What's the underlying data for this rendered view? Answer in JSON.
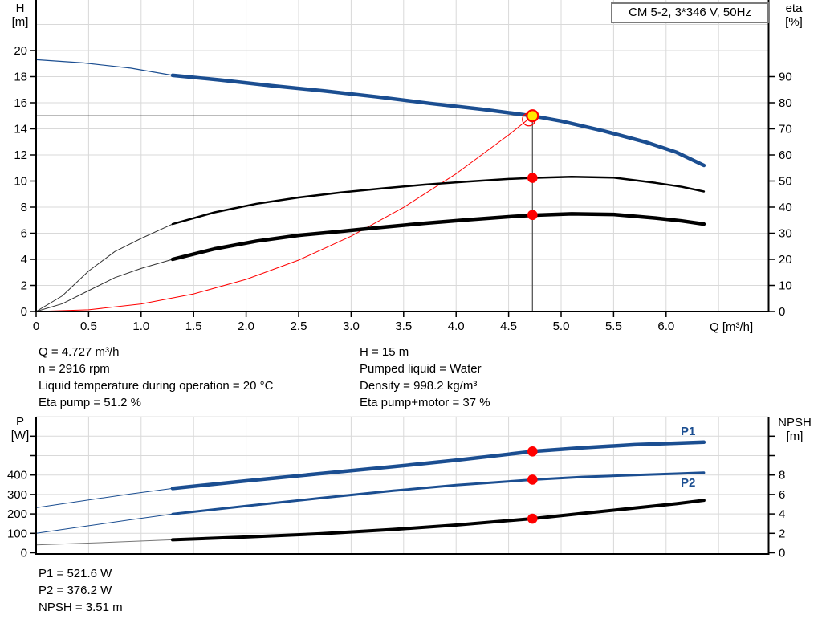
{
  "title_box": {
    "text": "CM 5-2, 3*346 V, 50Hz"
  },
  "colors": {
    "curve_blue": "#1b4e91",
    "system_red": "#ff0000",
    "marker_red": "#ff0000",
    "duty_yellow": "#ffe600",
    "grid": "#d9d9d9",
    "axis": "#000000",
    "duty_line": "#4a4a4a"
  },
  "info_panel": {
    "left": [
      "Q = 4.727 m³/h",
      "n = 2916 rpm",
      "Liquid temperature during operation = 20 °C",
      "Eta pump = 51.2 %"
    ],
    "right": [
      "H = 15 m",
      "Pumped liquid = Water",
      "Density = 998.2 kg/m³",
      "Eta pump+motor = 37 %"
    ]
  },
  "results_panel": [
    "P1 = 521.6 W",
    "P2 = 376.2 W",
    "NPSH = 3.51 m"
  ],
  "chart_data": [
    {
      "type": "line",
      "name": "qh-eta-chart",
      "title": "CM 5-2, 3*346 V, 50Hz",
      "x_axis": {
        "label": "Q [m³/h]",
        "min": 0,
        "max": 6.98,
        "ticks": [
          "0",
          "0.5",
          "1.0",
          "1.5",
          "2.0",
          "2.5",
          "3.0",
          "3.5",
          "4.0",
          "4.5",
          "5.0",
          "5.5",
          "6.0"
        ]
      },
      "y_axis_left": {
        "label": [
          "H",
          "[m]"
        ],
        "min": 0,
        "max": 23.9,
        "ticks": [
          0,
          2,
          4,
          6,
          8,
          10,
          12,
          14,
          16,
          18,
          20
        ]
      },
      "y_axis_right": {
        "label": [
          "eta",
          "[%]"
        ],
        "min": 0,
        "max": 119,
        "ticks": [
          0,
          10,
          20,
          30,
          40,
          50,
          60,
          70,
          80,
          90
        ]
      },
      "duty_point": {
        "q": 4.727,
        "h": 15
      },
      "markers": [
        {
          "q": 4.727,
          "value": 15,
          "axis": "left",
          "style": "duty"
        },
        {
          "q": 4.727,
          "value": 51.2,
          "axis": "right",
          "style": "dot"
        },
        {
          "q": 4.727,
          "value": 37,
          "axis": "right",
          "style": "dot"
        }
      ],
      "series": [
        {
          "id": "pump-curve-extension",
          "axis": "left",
          "color": "#1b4e91",
          "width": 1.2,
          "points": [
            [
              0,
              19.3
            ],
            [
              0.45,
              19.05
            ],
            [
              0.9,
              18.65
            ],
            [
              1.3,
              18.1
            ]
          ]
        },
        {
          "id": "pump-curve",
          "axis": "left",
          "color": "#1b4e91",
          "width": 4.5,
          "points": [
            [
              1.3,
              18.1
            ],
            [
              1.75,
              17.75
            ],
            [
              2.25,
              17.3
            ],
            [
              2.75,
              16.9
            ],
            [
              3.25,
              16.45
            ],
            [
              3.75,
              15.95
            ],
            [
              4.25,
              15.5
            ],
            [
              4.727,
              15
            ],
            [
              5.0,
              14.6
            ],
            [
              5.4,
              13.85
            ],
            [
              5.8,
              13.0
            ],
            [
              6.1,
              12.2
            ],
            [
              6.36,
              11.2
            ]
          ]
        },
        {
          "id": "system-curve",
          "axis": "left",
          "color": "#ff0000",
          "width": 1,
          "points": [
            [
              0,
              0
            ],
            [
              0.5,
              0.13
            ],
            [
              1,
              0.58
            ],
            [
              1.5,
              1.35
            ],
            [
              2,
              2.46
            ],
            [
              2.5,
              3.94
            ],
            [
              3,
              5.77
            ],
            [
              3.5,
              7.98
            ],
            [
              4,
              10.56
            ],
            [
              4.5,
              13.53
            ],
            [
              4.727,
              15
            ]
          ]
        },
        {
          "id": "eta-pump-extension",
          "axis": "right",
          "color": "#333333",
          "width": 1,
          "points": [
            [
              0,
              0
            ],
            [
              0.25,
              6
            ],
            [
              0.5,
              15.5
            ],
            [
              0.75,
              23
            ],
            [
              1,
              28
            ],
            [
              1.3,
              33.5
            ]
          ]
        },
        {
          "id": "eta-pump-curve",
          "axis": "right",
          "color": "#000000",
          "width": 2.5,
          "points": [
            [
              1.3,
              33.5
            ],
            [
              1.7,
              38
            ],
            [
              2.1,
              41.3
            ],
            [
              2.5,
              43.7
            ],
            [
              2.9,
              45.6
            ],
            [
              3.3,
              47.2
            ],
            [
              3.7,
              48.6
            ],
            [
              4.1,
              49.8
            ],
            [
              4.5,
              50.8
            ],
            [
              4.727,
              51.2
            ],
            [
              5.1,
              51.6
            ],
            [
              5.5,
              51.3
            ],
            [
              5.9,
              49.3
            ],
            [
              6.15,
              47.8
            ],
            [
              6.36,
              46
            ]
          ]
        },
        {
          "id": "eta-pump-motor-extension",
          "axis": "right",
          "color": "#333333",
          "width": 1,
          "points": [
            [
              0,
              0
            ],
            [
              0.25,
              3
            ],
            [
              0.5,
              8
            ],
            [
              0.75,
              13
            ],
            [
              1,
              16.5
            ],
            [
              1.3,
              20
            ]
          ]
        },
        {
          "id": "eta-pump-motor-curve",
          "axis": "right",
          "color": "#000000",
          "width": 4.5,
          "points": [
            [
              1.3,
              20
            ],
            [
              1.7,
              24
            ],
            [
              2.1,
              27
            ],
            [
              2.5,
              29.2
            ],
            [
              2.9,
              30.7
            ],
            [
              3.3,
              32.3
            ],
            [
              3.7,
              33.8
            ],
            [
              4.1,
              35.1
            ],
            [
              4.5,
              36.3
            ],
            [
              4.727,
              36.9
            ],
            [
              5.1,
              37.4
            ],
            [
              5.5,
              37.2
            ],
            [
              5.9,
              35.8
            ],
            [
              6.15,
              34.7
            ],
            [
              6.36,
              33.5
            ]
          ]
        }
      ]
    },
    {
      "type": "line",
      "name": "power-npsh-chart",
      "x_axis": {
        "label": "",
        "min": 0,
        "max": 6.98,
        "ticks": []
      },
      "y_axis_left": {
        "label": [
          "P",
          "[W]"
        ],
        "min": 0,
        "max": 700,
        "ticks": [
          0,
          100,
          200,
          300,
          400,
          500,
          600
        ],
        "labeled_max": 400
      },
      "y_axis_right": {
        "label": [
          "NPSH",
          "[m]"
        ],
        "min": 0,
        "max": 14,
        "ticks": [
          0,
          2,
          4,
          6,
          8,
          10,
          12
        ],
        "labeled_max": 8
      },
      "curve_labels": [
        {
          "text": "P1"
        },
        {
          "text": "P2"
        }
      ],
      "markers": [
        {
          "q": 4.727,
          "value": 521.6,
          "axis": "left",
          "style": "dot"
        },
        {
          "q": 4.727,
          "value": 376.2,
          "axis": "left",
          "style": "dot"
        },
        {
          "q": 4.727,
          "value": 3.51,
          "axis": "right",
          "style": "dot"
        }
      ],
      "series": [
        {
          "id": "p1-extension",
          "axis": "left",
          "color": "#1b4e91",
          "width": 1,
          "points": [
            [
              0,
              232
            ],
            [
              0.5,
              272
            ],
            [
              0.9,
              303
            ],
            [
              1.3,
              331
            ]
          ]
        },
        {
          "id": "p1-curve",
          "axis": "left",
          "color": "#1b4e91",
          "width": 4.5,
          "points": [
            [
              1.3,
              331
            ],
            [
              2,
              370
            ],
            [
              2.7,
              407
            ],
            [
              3.4,
              443
            ],
            [
              4,
              476
            ],
            [
              4.727,
              521.6
            ],
            [
              5.2,
              540
            ],
            [
              5.7,
              556
            ],
            [
              6.1,
              564
            ],
            [
              6.36,
              569
            ]
          ]
        },
        {
          "id": "p2-extension",
          "axis": "left",
          "color": "#1b4e91",
          "width": 1,
          "points": [
            [
              0,
              100
            ],
            [
              0.5,
              139
            ],
            [
              0.9,
              170
            ],
            [
              1.3,
              199
            ]
          ]
        },
        {
          "id": "p2-curve",
          "axis": "left",
          "color": "#1b4e91",
          "width": 3,
          "points": [
            [
              1.3,
              199
            ],
            [
              2,
              241
            ],
            [
              2.7,
              281
            ],
            [
              3.4,
              319
            ],
            [
              4,
              348
            ],
            [
              4.727,
              376.2
            ],
            [
              5.2,
              390
            ],
            [
              5.7,
              400
            ],
            [
              6.1,
              407
            ],
            [
              6.36,
              412
            ]
          ]
        },
        {
          "id": "npsh-extension",
          "axis": "right",
          "color": "#777777",
          "width": 1,
          "points": [
            [
              0,
              0.8
            ],
            [
              0.65,
              1.05
            ],
            [
              1.3,
              1.33
            ]
          ]
        },
        {
          "id": "npsh-curve",
          "axis": "right",
          "color": "#000000",
          "width": 4,
          "points": [
            [
              1.3,
              1.33
            ],
            [
              2,
              1.62
            ],
            [
              2.7,
              1.95
            ],
            [
              3.4,
              2.4
            ],
            [
              4,
              2.85
            ],
            [
              4.727,
              3.51
            ],
            [
              5.2,
              4.05
            ],
            [
              5.7,
              4.6
            ],
            [
              6.1,
              5.05
            ],
            [
              6.36,
              5.4
            ]
          ]
        }
      ]
    }
  ]
}
